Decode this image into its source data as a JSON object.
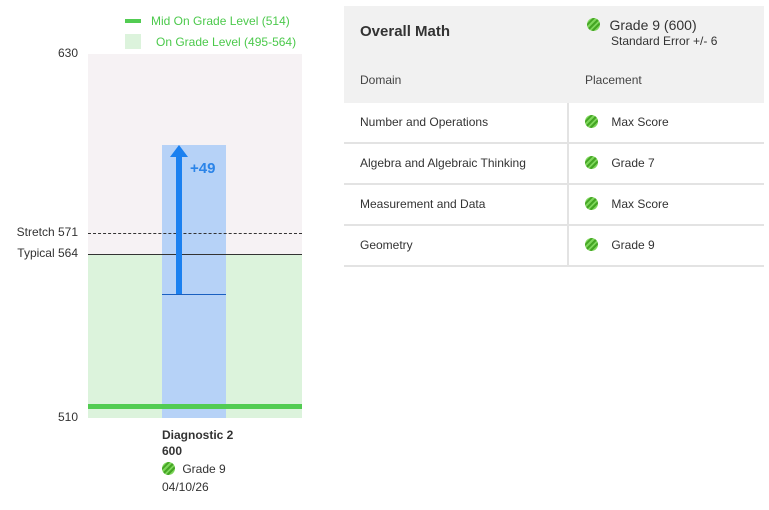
{
  "legend": {
    "mid_label": "Mid On Grade Level (514)",
    "band_label": "On Grade Level (495-564)",
    "color_mid": "#52cc52",
    "color_band": "#dcf3dc"
  },
  "chart_data": {
    "type": "bar",
    "ylim": [
      510,
      630
    ],
    "y_ticks": [
      {
        "label": "630",
        "value": 630
      },
      {
        "label": "Stretch 571",
        "value": 571
      },
      {
        "label": "Typical 564",
        "value": 564
      },
      {
        "label": "510",
        "value": 510
      }
    ],
    "categories": [
      "Diagnostic 2"
    ],
    "values": [
      600
    ],
    "baseline_value": 551,
    "gain_label": "+49",
    "mid_on_grade_value": 514,
    "on_grade_band": [
      495,
      564
    ],
    "stretch_value": 571,
    "typical_value": 564,
    "bar_color": "#b6d2f7",
    "arrow_color": "#1a80f0"
  },
  "x_label": {
    "name": "Diagnostic 2",
    "score": "600",
    "placement": "Grade 9",
    "date": "04/10/26"
  },
  "table": {
    "title": "Overall Math",
    "overall_placement": "Grade 9 (600)",
    "standard_error": "Standard Error +/- 6",
    "col_domain": "Domain",
    "col_placement": "Placement",
    "rows": [
      {
        "domain": "Number and Operations",
        "placement": "Max Score",
        "icon": "green-striped-circle-icon"
      },
      {
        "domain": "Algebra and Algebraic Thinking",
        "placement": "Grade 7",
        "icon": "green-striped-circle-icon"
      },
      {
        "domain": "Measurement and Data",
        "placement": "Max Score",
        "icon": "green-striped-circle-icon"
      },
      {
        "domain": "Geometry",
        "placement": "Grade 9",
        "icon": "green-striped-circle-icon"
      }
    ]
  }
}
